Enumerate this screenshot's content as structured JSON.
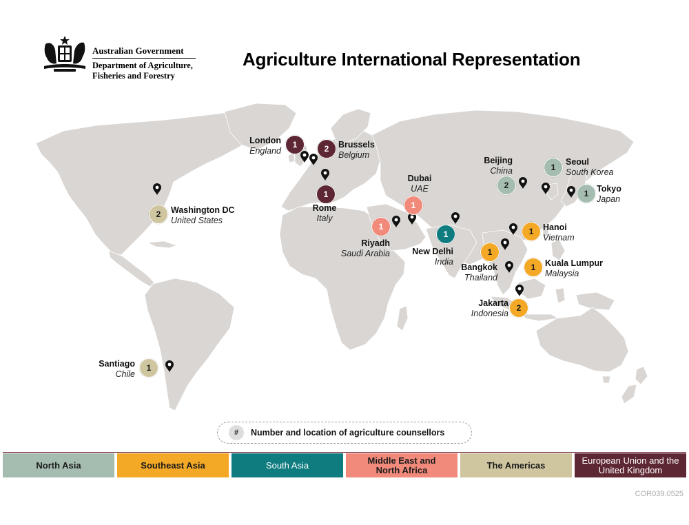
{
  "header": {
    "gov_name": "Australian Government",
    "dept_name": "Department of Agriculture, Fisheries and Forestry",
    "title": "Agriculture International Representation"
  },
  "colors": {
    "land": "#d9d6d3",
    "north_asia": "#a5bdb0",
    "southeast_asia": "#f3a826",
    "south_asia": "#0f7c80",
    "middle_east": "#f18a7a",
    "americas": "#cfc6a0",
    "eu_uk": "#5e2734",
    "pin": "#111111"
  },
  "posts": [
    {
      "city": "London",
      "country": "England",
      "count": "1",
      "region": "eu_uk"
    },
    {
      "city": "Brussels",
      "country": "Belgium",
      "count": "2",
      "region": "eu_uk"
    },
    {
      "city": "Rome",
      "country": "Italy",
      "count": "1",
      "region": "eu_uk"
    },
    {
      "city": "Washington DC",
      "country": "United States",
      "count": "2",
      "region": "americas"
    },
    {
      "city": "Santiago",
      "country": "Chile",
      "count": "1",
      "region": "americas"
    },
    {
      "city": "Dubai",
      "country": "UAE",
      "count": "1",
      "region": "middle_east"
    },
    {
      "city": "Riyadh",
      "country": "Saudi Arabia",
      "count": "1",
      "region": "middle_east"
    },
    {
      "city": "New Delhi",
      "country": "India",
      "count": "1",
      "region": "south_asia"
    },
    {
      "city": "Beijing",
      "country": "China",
      "count": "2",
      "region": "north_asia"
    },
    {
      "city": "Seoul",
      "country": "South Korea",
      "count": "1",
      "region": "north_asia"
    },
    {
      "city": "Tokyo",
      "country": "Japan",
      "count": "1",
      "region": "north_asia"
    },
    {
      "city": "Hanoi",
      "country": "Vietnam",
      "count": "1",
      "region": "southeast_asia"
    },
    {
      "city": "Bangkok",
      "country": "Thailand",
      "count": "1",
      "region": "southeast_asia"
    },
    {
      "city": "Kuala Lumpur",
      "country": "Malaysia",
      "count": "1",
      "region": "southeast_asia"
    },
    {
      "city": "Jakarta",
      "country": "Indonesia",
      "count": "2",
      "region": "southeast_asia"
    }
  ],
  "key": {
    "symbol": "#",
    "text": "Number and location of agriculture counsellors"
  },
  "legend": [
    {
      "label": "North Asia",
      "color": "#a5bdb0",
      "text_color": "#1a1a1a"
    },
    {
      "label": "Southeast Asia",
      "color": "#f3a826",
      "text_color": "#1a1a1a"
    },
    {
      "label": "South Asia",
      "color": "#0f7c80",
      "text_color": "#ffffff"
    },
    {
      "label": "Middle East and North Africa",
      "color": "#f18a7a",
      "text_color": "#1a1a1a"
    },
    {
      "label": "The Americas",
      "color": "#cfc6a0",
      "text_color": "#1a1a1a"
    },
    {
      "label": "European Union and the United Kingdom",
      "color": "#5e2734",
      "text_color": "#ffffff"
    }
  ],
  "doc_code": "COR039.0525"
}
